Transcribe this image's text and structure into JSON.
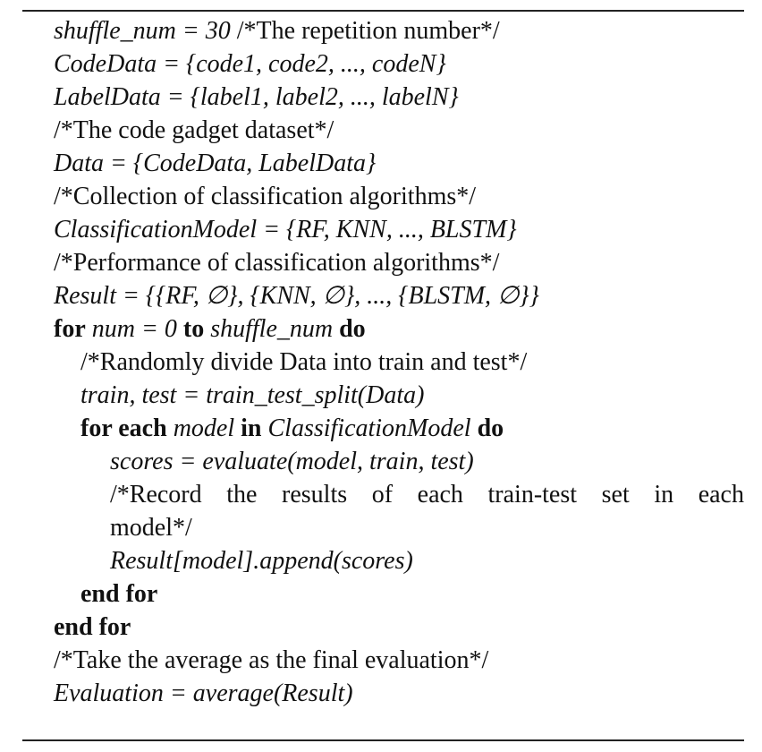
{
  "algorithm": {
    "l1_math": "shuffle_num = 30",
    "l1_comment": "/*The repetition number*/",
    "l2_math": "CodeData = {code1, code2, ..., codeN}",
    "l3_math": "LabelData = {label1, label2, ..., labelN}",
    "l4_comment": "/*The code gadget dataset*/",
    "l5_math": "Data = {CodeData, LabelData}",
    "l6_comment": "/*Collection of classification algorithms*/",
    "l7_math": "ClassificationModel = {RF, KNN, ..., BLSTM}",
    "l8_comment": "/*Performance of classification algorithms*/",
    "l9_math": "Result = {{RF, ∅}, {KNN, ∅}, ..., {BLSTM, ∅}}",
    "l10_kw_for": "for",
    "l10_math_a": "num = 0",
    "l10_kw_to": "to",
    "l10_math_b": "shuffle_num",
    "l10_kw_do": "do",
    "l11_comment": "/*Randomly divide Data into train and test*/",
    "l12_math": "train, test = train_test_split(Data)",
    "l13_kw_for_each": "for each",
    "l13_math_a": "model",
    "l13_kw_in": "in",
    "l13_math_b": "ClassificationModel",
    "l13_kw_do": "do",
    "l14_math": "scores = evaluate(model, train, test)",
    "l15_comment": "/*Record the results of each train-test set in each",
    "l16_comment": "model*/",
    "l17_math": "Result[model].append(scores)",
    "l18_kw": "end for",
    "l19_kw": "end for",
    "l20_comment": "/*Take the average as the final evaluation*/",
    "l21_math": "Evaluation = average(Result)"
  }
}
